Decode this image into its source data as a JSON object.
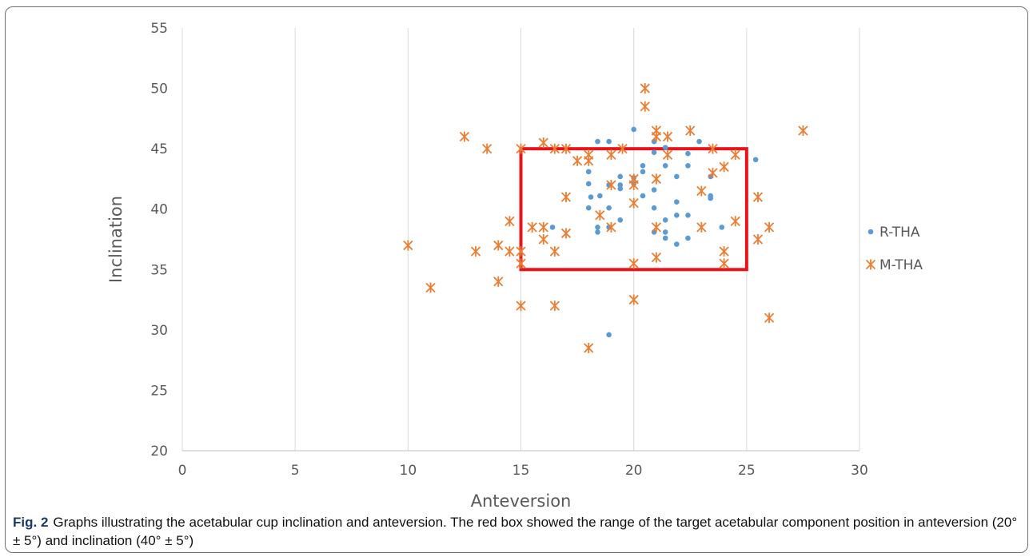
{
  "chart_data": {
    "type": "scatter",
    "xlabel": "Anteversion",
    "ylabel": "Inclination",
    "xlim": [
      0,
      30
    ],
    "ylim": [
      20,
      55
    ],
    "xticks": [
      "0",
      "5",
      "10",
      "15",
      "20",
      "25",
      "30"
    ],
    "yticks": [
      "20",
      "25",
      "30",
      "35",
      "40",
      "45",
      "50",
      "55"
    ],
    "grid": "vertical",
    "legend": "right",
    "target_box": {
      "x": [
        15,
        25
      ],
      "y": [
        35,
        45
      ],
      "color": "#e8141a"
    },
    "series": [
      {
        "name": "R-THA",
        "marker": "dot",
        "color": "#5b9bd5",
        "points": [
          [
            16.4,
            38.5
          ],
          [
            18.0,
            43.1
          ],
          [
            18.0,
            42.1
          ],
          [
            18.0,
            40.1
          ],
          [
            18.1,
            41.0
          ],
          [
            18.4,
            45.6
          ],
          [
            18.4,
            38.5
          ],
          [
            18.4,
            38.1
          ],
          [
            18.5,
            41.1
          ],
          [
            18.9,
            45.6
          ],
          [
            18.9,
            42.0
          ],
          [
            18.9,
            40.1
          ],
          [
            18.9,
            38.5
          ],
          [
            18.9,
            29.6
          ],
          [
            19.4,
            42.7
          ],
          [
            19.4,
            42.0
          ],
          [
            19.4,
            41.7
          ],
          [
            19.4,
            39.1
          ],
          [
            20.0,
            46.6
          ],
          [
            20.0,
            42.6
          ],
          [
            20.0,
            42.1
          ],
          [
            20.4,
            43.6
          ],
          [
            20.4,
            43.1
          ],
          [
            20.4,
            41.1
          ],
          [
            20.9,
            45.6
          ],
          [
            20.9,
            44.7
          ],
          [
            20.9,
            41.6
          ],
          [
            20.9,
            40.1
          ],
          [
            20.9,
            38.1
          ],
          [
            21.4,
            45.1
          ],
          [
            21.4,
            43.6
          ],
          [
            21.4,
            39.1
          ],
          [
            21.4,
            38.1
          ],
          [
            21.4,
            37.6
          ],
          [
            21.9,
            42.7
          ],
          [
            21.9,
            40.6
          ],
          [
            21.9,
            39.5
          ],
          [
            21.9,
            37.1
          ],
          [
            22.4,
            44.6
          ],
          [
            22.4,
            43.6
          ],
          [
            22.4,
            39.5
          ],
          [
            22.4,
            37.6
          ],
          [
            22.9,
            45.6
          ],
          [
            23.4,
            42.7
          ],
          [
            23.4,
            41.1
          ],
          [
            23.4,
            40.9
          ],
          [
            23.9,
            38.5
          ],
          [
            25.4,
            44.1
          ]
        ]
      },
      {
        "name": "M-THA",
        "marker": "star",
        "color": "#ed7d31",
        "points": [
          [
            10.0,
            37.0
          ],
          [
            11.0,
            33.5
          ],
          [
            12.5,
            46.0
          ],
          [
            13.0,
            36.5
          ],
          [
            13.5,
            45.0
          ],
          [
            14.0,
            37.0
          ],
          [
            14.0,
            34.0
          ],
          [
            14.5,
            39.0
          ],
          [
            14.5,
            36.5
          ],
          [
            15.0,
            45.0
          ],
          [
            15.0,
            36.5
          ],
          [
            15.0,
            35.5
          ],
          [
            15.0,
            32.0
          ],
          [
            15.5,
            38.5
          ],
          [
            16.0,
            45.5
          ],
          [
            16.0,
            38.5
          ],
          [
            16.0,
            37.5
          ],
          [
            16.5,
            45.0
          ],
          [
            16.5,
            36.5
          ],
          [
            16.5,
            32.0
          ],
          [
            17.0,
            45.0
          ],
          [
            17.0,
            41.0
          ],
          [
            17.0,
            38.0
          ],
          [
            17.5,
            44.0
          ],
          [
            18.0,
            44.5
          ],
          [
            18.0,
            44.0
          ],
          [
            18.0,
            28.5
          ],
          [
            18.5,
            39.5
          ],
          [
            19.0,
            44.5
          ],
          [
            19.0,
            42.0
          ],
          [
            19.0,
            38.5
          ],
          [
            19.5,
            45.0
          ],
          [
            20.0,
            42.5
          ],
          [
            20.0,
            42.0
          ],
          [
            20.0,
            40.5
          ],
          [
            20.0,
            35.5
          ],
          [
            20.0,
            32.5
          ],
          [
            20.5,
            50.0
          ],
          [
            20.5,
            48.5
          ],
          [
            21.0,
            46.5
          ],
          [
            21.0,
            46.0
          ],
          [
            21.0,
            42.5
          ],
          [
            21.0,
            38.5
          ],
          [
            21.0,
            36.0
          ],
          [
            21.5,
            46.0
          ],
          [
            21.5,
            44.5
          ],
          [
            22.5,
            46.5
          ],
          [
            23.0,
            41.5
          ],
          [
            23.0,
            38.5
          ],
          [
            23.5,
            45.0
          ],
          [
            23.5,
            43.0
          ],
          [
            24.0,
            43.5
          ],
          [
            24.0,
            36.5
          ],
          [
            24.0,
            35.5
          ],
          [
            24.5,
            44.5
          ],
          [
            24.5,
            39.0
          ],
          [
            25.5,
            41.0
          ],
          [
            25.5,
            37.5
          ],
          [
            26.0,
            38.5
          ],
          [
            26.0,
            31.0
          ],
          [
            27.5,
            46.5
          ]
        ]
      }
    ]
  },
  "caption": {
    "label": "Fig. 2",
    "text": "Graphs illustrating the acetabular cup inclination and anteversion. The red box showed the range of the target acetabular component position in anteversion (20° ± 5°) and inclination (40° ± 5°)"
  }
}
